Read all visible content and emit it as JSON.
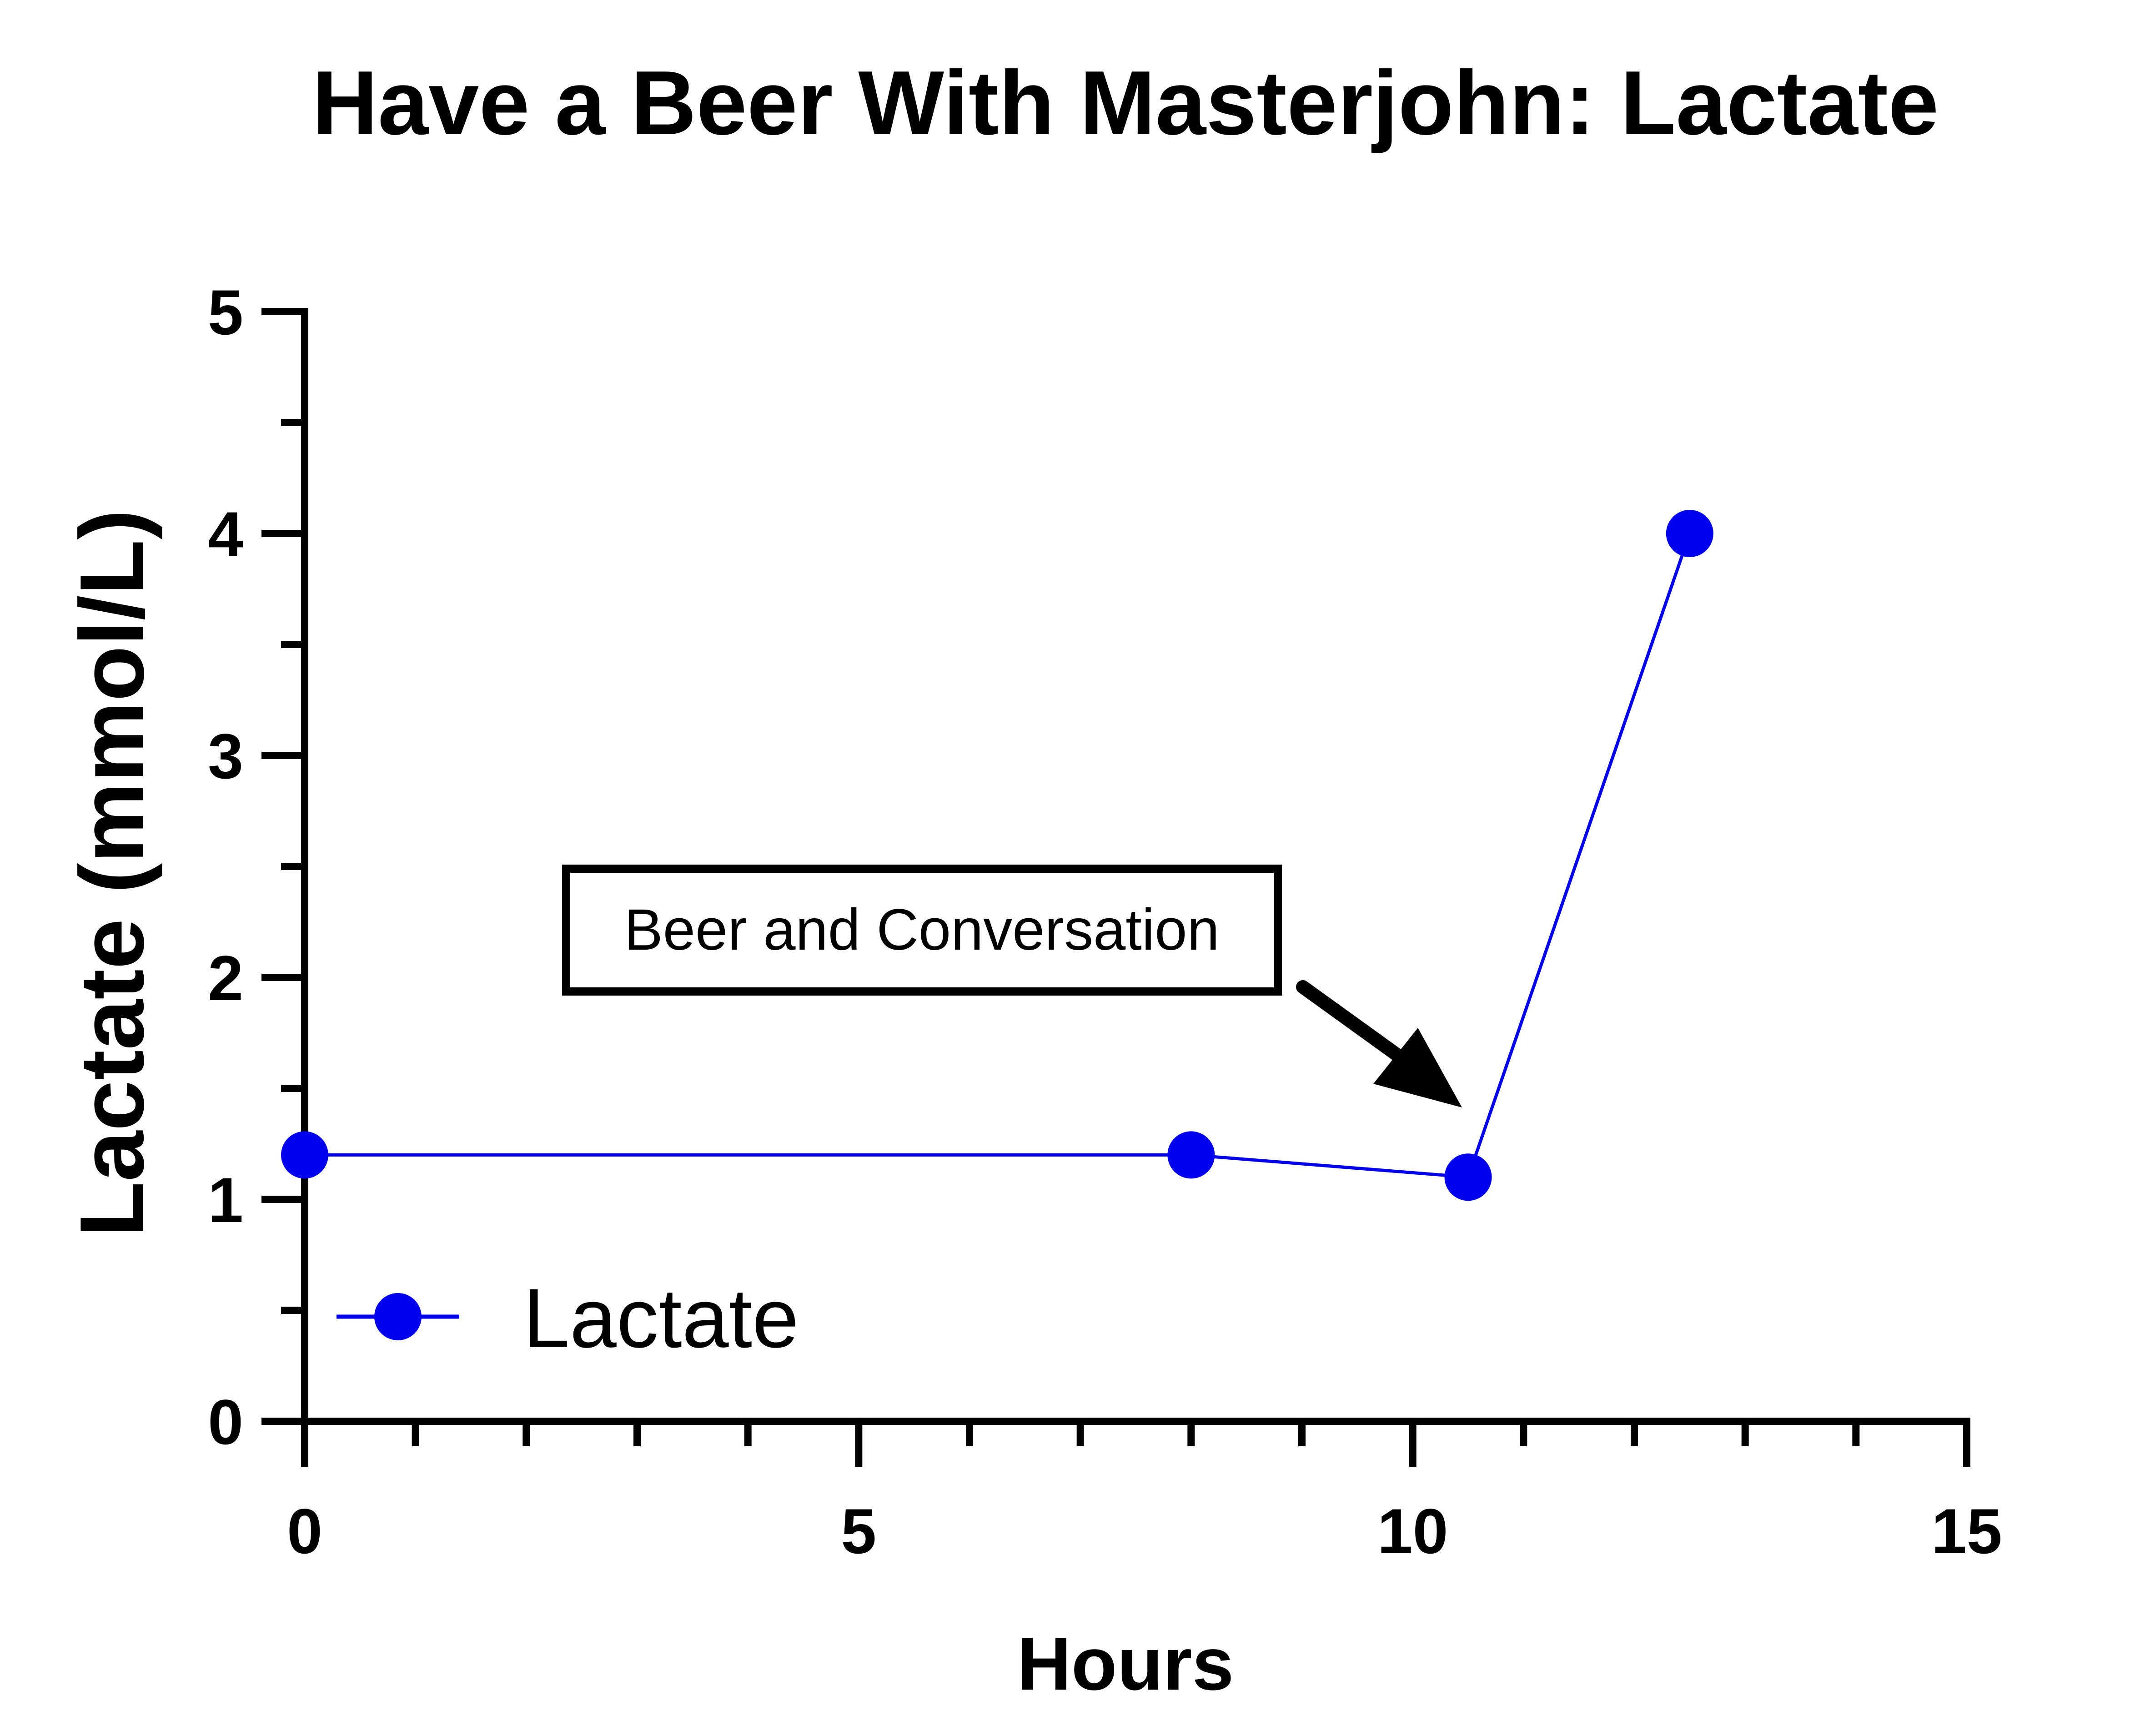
{
  "chart_data": {
    "type": "line",
    "title": "Have a Beer With Masterjohn: Lactate",
    "xlabel": "Hours",
    "ylabel": "Lactate (mmol/L)",
    "xlim": [
      0,
      15
    ],
    "ylim": [
      0,
      5
    ],
    "x_ticks": [
      "0",
      "5",
      "10",
      "15"
    ],
    "y_ticks": [
      "0",
      "1",
      "2",
      "3",
      "4",
      "5"
    ],
    "grid": false,
    "legend_position": "bottom-left",
    "series": [
      {
        "name": "Lactate",
        "color": "#0000ee",
        "x": [
          0,
          8,
          10.5,
          12.5
        ],
        "y": [
          1.2,
          1.2,
          1.1,
          4.0
        ]
      }
    ],
    "annotations": [
      {
        "text": "Beer and Conversation",
        "points_to": {
          "x": 10.5,
          "y": 1.1
        }
      }
    ]
  }
}
